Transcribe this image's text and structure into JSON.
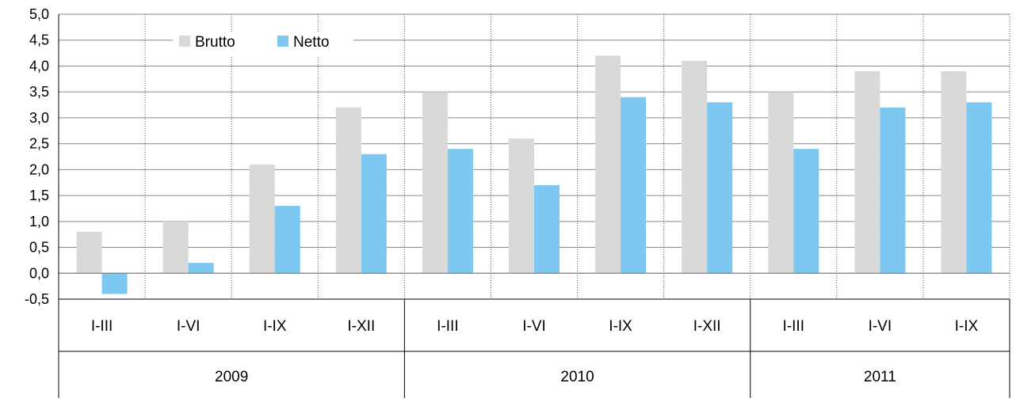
{
  "chart_data": {
    "type": "bar",
    "title": "",
    "xlabel": "",
    "ylabel": "",
    "ylim": [
      -0.5,
      5.0
    ],
    "yticks": [
      "-0,5",
      "0,0",
      "0,5",
      "1,0",
      "1,5",
      "2,0",
      "2,5",
      "3,0",
      "3,5",
      "4,0",
      "4,5",
      "5,0"
    ],
    "ytick_values": [
      -0.5,
      0.0,
      0.5,
      1.0,
      1.5,
      2.0,
      2.5,
      3.0,
      3.5,
      4.0,
      4.5,
      5.0
    ],
    "categories": [
      "I-III",
      "I-VI",
      "I-IX",
      "I-XII",
      "I-III",
      "I-VI",
      "I-IX",
      "I-XII",
      "I-III",
      "I-VI",
      "I-IX"
    ],
    "groups": [
      {
        "label": "2009",
        "count": 4
      },
      {
        "label": "2010",
        "count": 4
      },
      {
        "label": "2011",
        "count": 3
      }
    ],
    "series": [
      {
        "name": "Brutto",
        "color": "#d9d9d9",
        "values": [
          0.8,
          1.0,
          2.1,
          3.2,
          3.5,
          2.6,
          4.2,
          4.1,
          3.5,
          3.9,
          3.9
        ]
      },
      {
        "name": "Netto",
        "color": "#7cc8f0",
        "values": [
          -0.4,
          0.2,
          1.3,
          2.3,
          2.4,
          1.7,
          3.4,
          3.3,
          2.4,
          3.2,
          3.3
        ]
      }
    ],
    "grid": true,
    "legend": "top-left"
  }
}
